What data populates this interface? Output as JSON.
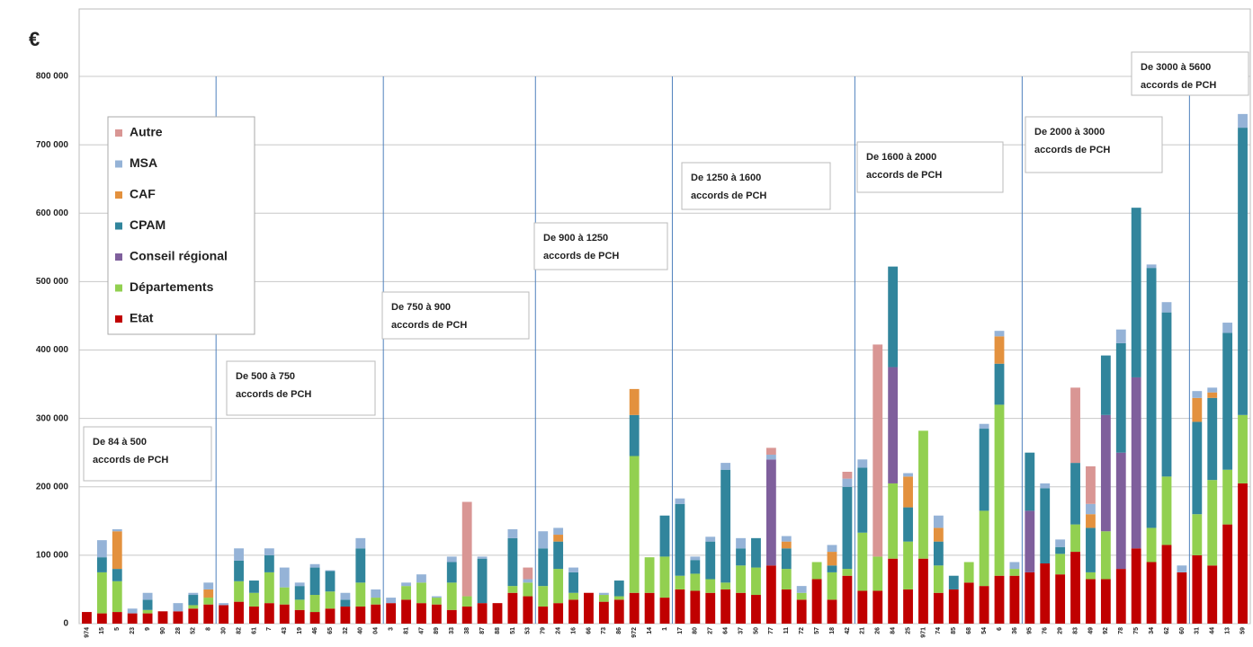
{
  "chart_data": {
    "type": "stacked_bar",
    "unit_label": "€",
    "categories": [
      "974",
      "15",
      "5",
      "23",
      "9",
      "90",
      "28",
      "52",
      "8",
      "30",
      "82",
      "61",
      "7",
      "43",
      "19",
      "46",
      "65",
      "32",
      "40",
      "04",
      "3",
      "81",
      "47",
      "89",
      "33",
      "38",
      "87",
      "88",
      "51",
      "53",
      "79",
      "24",
      "16",
      "66",
      "73",
      "86",
      "972",
      "14",
      "1",
      "17",
      "80",
      "27",
      "64",
      "37",
      "50",
      "77",
      "11",
      "72",
      "57",
      "18",
      "42",
      "21",
      "26",
      "84",
      "25",
      "971",
      "74",
      "85",
      "68",
      "54",
      "6",
      "36",
      "95",
      "76",
      "29",
      "83",
      "49",
      "92",
      "78",
      "75",
      "34",
      "62",
      "60",
      "31",
      "44",
      "13",
      "59"
    ],
    "series": [
      {
        "name": "Etat",
        "color": "#c00000",
        "values": [
          17000,
          15000,
          17000,
          15000,
          15000,
          18000,
          18000,
          22000,
          28000,
          27000,
          32000,
          25000,
          30000,
          28000,
          20000,
          17000,
          22000,
          25000,
          25000,
          28000,
          30000,
          35000,
          30000,
          28000,
          20000,
          25000,
          30000,
          30000,
          45000,
          40000,
          25000,
          30000,
          35000,
          45000,
          32000,
          35000,
          45000,
          45000,
          38000,
          50000,
          48000,
          45000,
          50000,
          45000,
          42000,
          85000,
          50000,
          35000,
          65000,
          35000,
          70000,
          48000,
          48000,
          95000,
          50000,
          95000,
          45000,
          50000,
          60000,
          55000,
          70000,
          70000,
          75000,
          88000,
          72000,
          105000,
          65000,
          65000,
          80000,
          110000,
          90000,
          115000,
          75000,
          100000,
          85000,
          145000,
          205000
        ]
      },
      {
        "name": "Départements",
        "color": "#92d050",
        "values": [
          0,
          60000,
          45000,
          0,
          5000,
          0,
          0,
          5000,
          10000,
          0,
          30000,
          20000,
          45000,
          25000,
          15000,
          25000,
          25000,
          0,
          35000,
          10000,
          0,
          20000,
          30000,
          10000,
          40000,
          15000,
          0,
          0,
          10000,
          20000,
          30000,
          50000,
          10000,
          0,
          10000,
          5000,
          200000,
          52000,
          60000,
          20000,
          25000,
          20000,
          10000,
          40000,
          40000,
          0,
          30000,
          10000,
          25000,
          40000,
          10000,
          85000,
          50000,
          110000,
          70000,
          187000,
          40000,
          0,
          30000,
          110000,
          250000,
          10000,
          0,
          0,
          30000,
          40000,
          10000,
          70000,
          0,
          0,
          50000,
          100000,
          0,
          60000,
          125000,
          80000,
          100000
        ]
      },
      {
        "name": "Conseil régional",
        "color": "#7f5f9c",
        "values": [
          0,
          0,
          0,
          0,
          0,
          0,
          0,
          0,
          0,
          0,
          0,
          0,
          0,
          0,
          0,
          0,
          0,
          0,
          0,
          0,
          0,
          0,
          0,
          0,
          0,
          0,
          0,
          0,
          0,
          0,
          0,
          0,
          0,
          0,
          0,
          0,
          0,
          0,
          0,
          0,
          0,
          0,
          0,
          0,
          0,
          155000,
          0,
          0,
          0,
          0,
          0,
          0,
          0,
          170000,
          0,
          0,
          0,
          0,
          0,
          0,
          0,
          0,
          90000,
          0,
          0,
          0,
          0,
          170000,
          170000,
          250000,
          0,
          0,
          0,
          0,
          0,
          0,
          0
        ]
      },
      {
        "name": "CPAM",
        "color": "#31859c",
        "values": [
          0,
          22000,
          18000,
          0,
          15000,
          0,
          0,
          15000,
          0,
          0,
          30000,
          18000,
          25000,
          0,
          20000,
          40000,
          30000,
          10000,
          50000,
          0,
          0,
          0,
          0,
          0,
          30000,
          0,
          65000,
          0,
          70000,
          0,
          55000,
          40000,
          30000,
          0,
          0,
          23000,
          60000,
          0,
          60000,
          105000,
          20000,
          55000,
          165000,
          25000,
          43000,
          0,
          30000,
          0,
          0,
          10000,
          120000,
          95000,
          0,
          147000,
          50000,
          0,
          35000,
          20000,
          0,
          120000,
          60000,
          0,
          85000,
          110000,
          10000,
          90000,
          65000,
          87000,
          160000,
          248000,
          380000,
          240000,
          0,
          135000,
          120000,
          200000,
          420000
        ]
      },
      {
        "name": "CAF",
        "color": "#e3913e",
        "values": [
          0,
          0,
          55000,
          0,
          0,
          0,
          0,
          0,
          12000,
          0,
          0,
          0,
          0,
          0,
          0,
          0,
          0,
          0,
          0,
          0,
          0,
          0,
          0,
          0,
          0,
          0,
          0,
          0,
          0,
          0,
          0,
          10000,
          0,
          0,
          0,
          0,
          38000,
          0,
          0,
          0,
          0,
          0,
          0,
          0,
          0,
          0,
          10000,
          0,
          0,
          20000,
          0,
          0,
          0,
          0,
          45000,
          0,
          20000,
          0,
          0,
          0,
          40000,
          0,
          0,
          0,
          0,
          0,
          20000,
          0,
          0,
          0,
          0,
          0,
          0,
          35000,
          8000,
          0,
          0
        ]
      },
      {
        "name": "MSA",
        "color": "#95b3d7",
        "values": [
          0,
          25000,
          3000,
          7000,
          10000,
          0,
          12000,
          3000,
          10000,
          3000,
          18000,
          0,
          10000,
          29000,
          5000,
          5000,
          1000,
          10000,
          15000,
          12000,
          8000,
          5000,
          12000,
          2000,
          8000,
          0,
          3000,
          0,
          13000,
          5000,
          25000,
          10000,
          7000,
          0,
          3000,
          0,
          0,
          0,
          0,
          8000,
          5000,
          7000,
          10000,
          15000,
          0,
          7000,
          8000,
          10000,
          0,
          10000,
          12000,
          12000,
          0,
          0,
          5000,
          0,
          18000,
          0,
          0,
          7000,
          8000,
          10000,
          0,
          7000,
          11000,
          0,
          15000,
          0,
          20000,
          0,
          5000,
          15000,
          10000,
          10000,
          7000,
          15000,
          20000
        ]
      },
      {
        "name": "Autre",
        "color": "#d99694",
        "values": [
          0,
          0,
          0,
          0,
          0,
          0,
          0,
          0,
          0,
          0,
          0,
          0,
          0,
          0,
          0,
          0,
          0,
          0,
          0,
          0,
          0,
          0,
          0,
          0,
          0,
          138000,
          0,
          0,
          0,
          17000,
          0,
          0,
          0,
          0,
          0,
          0,
          0,
          0,
          0,
          0,
          0,
          0,
          0,
          0,
          0,
          10000,
          0,
          0,
          0,
          0,
          10000,
          0,
          310000,
          0,
          0,
          0,
          0,
          0,
          0,
          0,
          0,
          0,
          0,
          0,
          0,
          110000,
          55000,
          0,
          0,
          0,
          0,
          0,
          0,
          0,
          0,
          0,
          0
        ]
      }
    ],
    "ylim": [
      0,
      800000
    ],
    "yticks": [
      0,
      {
        "value": 100000,
        "label": "100 000"
      },
      {
        "value": 200000,
        "label": "200 000"
      },
      {
        "value": 300000,
        "label": "300 000"
      },
      {
        "value": 400000,
        "label": "400 000"
      },
      {
        "value": 500000,
        "label": "500 000"
      },
      {
        "value": 600000,
        "label": "600 000"
      },
      {
        "value": 700000,
        "label": "700 000"
      },
      {
        "value": 800000,
        "label": "800 000"
      }
    ],
    "grid": true,
    "annotations": [
      {
        "lines": [
          "De 84 à 500",
          "accords de PCH"
        ]
      },
      {
        "lines": [
          "De 500 à 750",
          "accords de PCH"
        ]
      },
      {
        "lines": [
          "De 750 à 900",
          "accords de PCH"
        ]
      },
      {
        "lines": [
          "De 900 à 1250",
          "accords de PCH"
        ]
      },
      {
        "lines": [
          "De 1250 à 1600",
          "accords de PCH"
        ]
      },
      {
        "lines": [
          "De 1600 à 2000",
          "accords de PCH"
        ]
      },
      {
        "lines": [
          "De 2000 à 3000",
          "accords de PCH"
        ]
      },
      {
        "lines": [
          "De 3000 à 5600",
          "accords de PCH"
        ]
      }
    ]
  }
}
